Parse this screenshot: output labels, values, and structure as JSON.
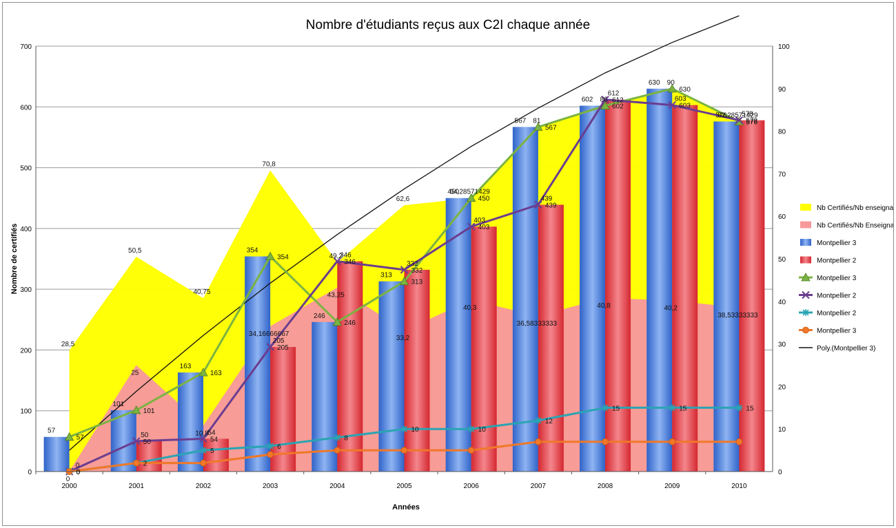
{
  "chart_data": {
    "type": "bar",
    "title": "Nombre d'étudiants reçus aux C2I chaque année",
    "xlabel": "Années",
    "ylabel": "Nombre de certifiés",
    "categories": [
      "2000",
      "2001",
      "2002",
      "2003",
      "2004",
      "2005",
      "2006",
      "2007",
      "2008",
      "2009",
      "2010"
    ],
    "ylim": [
      0,
      700
    ],
    "y2lim": [
      0,
      100
    ],
    "yticks": [
      0,
      100,
      200,
      300,
      400,
      500,
      600,
      700
    ],
    "y2ticks": [
      0,
      10,
      20,
      30,
      40,
      50,
      60,
      70,
      80,
      90,
      100
    ],
    "grid": true,
    "legend_position": "right",
    "series": [
      {
        "name": "Nb Certifiés/Nb enseignants",
        "kind": "area",
        "axis": "secondary",
        "color": "#ffff00",
        "values": [
          28.5,
          50.5,
          40.75,
          70.8,
          49.2,
          62.6,
          64.28571429,
          81,
          86,
          90,
          82.28571429
        ],
        "labels": [
          "28,5",
          "50,5",
          "40,75",
          "70,8",
          "49,2",
          "62,6",
          "64,28571429",
          "81",
          "86",
          "90",
          "82,28571429"
        ]
      },
      {
        "name": "Nb Certifiés/Nb Enseignants",
        "kind": "area",
        "axis": "secondary",
        "color": "#f7999b",
        "values": [
          0,
          25,
          10.8,
          34.16666667,
          43.25,
          33.2,
          40.3,
          36.58333333,
          40.8,
          40.2,
          38.53333333
        ],
        "labels": [
          "0",
          "25",
          "10,8",
          "34,16666667",
          "43,25",
          "33,2",
          "40,3",
          "36,58333333",
          "40,8",
          "40,2",
          "38,53333333"
        ]
      },
      {
        "name": "Montpellier 3",
        "kind": "bar",
        "axis": "primary",
        "color": "#3b73d6",
        "values": [
          57,
          101,
          163,
          354,
          246,
          313,
          450,
          567,
          602,
          630,
          576
        ],
        "labels": [
          "57",
          "101",
          "163",
          "354",
          "246",
          "313",
          "450",
          "567",
          "602",
          "630",
          "576"
        ]
      },
      {
        "name": "Montpellier 2",
        "kind": "bar",
        "axis": "primary",
        "color": "#e0323c",
        "values": [
          0,
          50,
          54,
          205,
          346,
          332,
          403,
          439,
          612,
          603,
          578
        ],
        "labels": [
          "0",
          "50",
          "54",
          "205",
          "346",
          "332",
          "403",
          "439",
          "612",
          "603",
          "578"
        ]
      },
      {
        "name": "Montpellier 3",
        "kind": "line",
        "axis": "primary",
        "color": "#7cb342",
        "marker": "triangle",
        "values": [
          57,
          101,
          163,
          354,
          246,
          313,
          450,
          567,
          602,
          630,
          576
        ],
        "labels": [
          "57",
          "101",
          "163",
          "354",
          "246",
          "313",
          "450",
          "567",
          "602",
          "630",
          "576"
        ]
      },
      {
        "name": "Montpellier 2",
        "kind": "line",
        "axis": "primary",
        "color": "#6a3d8f",
        "marker": "x",
        "values": [
          0,
          50,
          54,
          205,
          346,
          332,
          403,
          439,
          612,
          603,
          578
        ],
        "labels": [
          "0",
          "50",
          "54",
          "205",
          "346",
          "332",
          "403",
          "439",
          "612",
          "603",
          "578"
        ]
      },
      {
        "name": "Montpellier 2",
        "kind": "line",
        "axis": "secondary",
        "color": "#2aa4b3",
        "marker": "star",
        "values": [
          0,
          2,
          5,
          6,
          8,
          10,
          10,
          12,
          15,
          15,
          15
        ],
        "labels": [
          "0",
          "",
          "5",
          "6",
          "8",
          "10",
          "10",
          "12",
          "15",
          "15",
          "15"
        ]
      },
      {
        "name": "Montpellier 3",
        "kind": "line",
        "axis": "secondary",
        "color": "#f07828",
        "marker": "circle",
        "values": [
          0,
          2,
          2,
          4,
          5,
          5,
          5,
          7,
          7,
          7,
          7
        ],
        "labels": [
          "0",
          "2",
          "",
          "",
          "",
          "",
          "",
          "",
          "",
          "",
          ""
        ]
      },
      {
        "name": "Poly.(Montpellier 3)",
        "kind": "trendline",
        "axis": "primary",
        "color": "#111111",
        "values": [
          35,
          132,
          224,
          310,
          390,
          465,
          535,
          598,
          656,
          706,
          750
        ]
      }
    ]
  }
}
